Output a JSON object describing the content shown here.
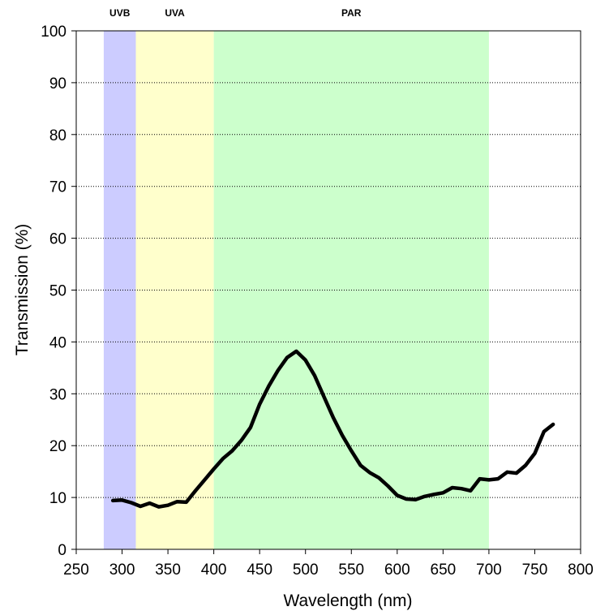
{
  "chart_data": {
    "type": "line",
    "title": "",
    "xlabel": "Wavelength (nm)",
    "ylabel": "Transmission (%)",
    "xlim": [
      250,
      800
    ],
    "ylim": [
      0,
      100
    ],
    "xticks": [
      "250",
      "300",
      "350",
      "400",
      "450",
      "500",
      "550",
      "600",
      "650",
      "700",
      "750",
      "800"
    ],
    "yticks": [
      "0",
      "10",
      "20",
      "30",
      "40",
      "50",
      "60",
      "70",
      "80",
      "90",
      "100"
    ],
    "grid": "horizontal dotted",
    "legend": "none",
    "bands": [
      {
        "label": "UVB",
        "from": 280,
        "to": 315,
        "color": "#ccccff"
      },
      {
        "label": "UVA",
        "from": 315,
        "to": 400,
        "color": "#ffffcc"
      },
      {
        "label": "PAR",
        "from": 400,
        "to": 700,
        "color": "#ccffcc"
      }
    ],
    "series": [
      {
        "color": "#000000",
        "x": [
          290,
          300,
          310,
          320,
          330,
          340,
          350,
          360,
          370,
          380,
          390,
          400,
          410,
          420,
          430,
          440,
          450,
          460,
          470,
          480,
          490,
          500,
          510,
          520,
          530,
          540,
          550,
          560,
          570,
          580,
          590,
          600,
          610,
          620,
          630,
          640,
          650,
          660,
          670,
          680,
          690,
          700,
          710,
          720,
          730,
          740,
          750,
          760,
          770
        ],
        "y": [
          9.4,
          9.5,
          9.0,
          8.3,
          8.9,
          8.2,
          8.5,
          9.2,
          9.1,
          11.3,
          13.4,
          15.5,
          17.5,
          19.0,
          21.0,
          23.5,
          28.0,
          31.5,
          34.5,
          37.0,
          38.2,
          36.5,
          33.5,
          29.5,
          25.5,
          22.0,
          19.0,
          16.2,
          14.8,
          13.8,
          12.2,
          10.4,
          9.7,
          9.6,
          10.2,
          10.6,
          10.9,
          11.9,
          11.7,
          11.3,
          13.6,
          13.4,
          13.6,
          14.9,
          14.7,
          16.2,
          18.5,
          22.7,
          24.1
        ]
      }
    ]
  }
}
